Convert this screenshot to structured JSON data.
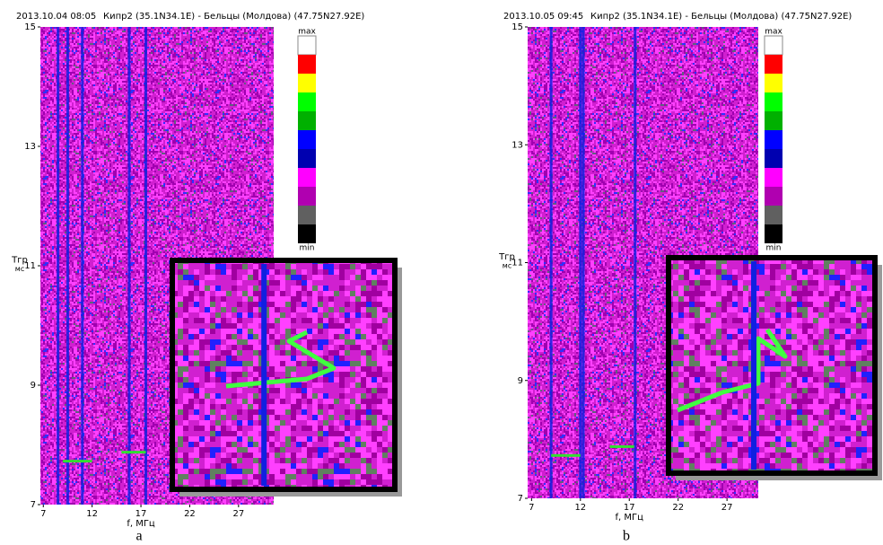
{
  "chart_data": [
    {
      "type": "heatmap",
      "date": "2013.10.04   08:05",
      "title": "Кипр2 (35.1N34.1E)  -  Бельцы (Молдова) (47.75N27.92E)",
      "x_label": "f, МГц",
      "y_label": "Tгр",
      "y_unit": "мс",
      "panel_label": "a",
      "xlim": [
        6.7,
        30.6
      ],
      "xticks": [
        7,
        12,
        17,
        22,
        27
      ],
      "ylim": [
        7,
        15
      ],
      "yticks": [
        7,
        9,
        11,
        13,
        15
      ],
      "colorbar": {
        "top_label": "max",
        "bottom_label": "min",
        "colors": [
          "#ffffff",
          "#ff0000",
          "#ffff00",
          "#00ff00",
          "#00b000",
          "#0000ff",
          "#0000b0",
          "#ff00ff",
          "#b000b0",
          "#606060",
          "#000000"
        ]
      }
    },
    {
      "type": "heatmap",
      "date": "2013.10.05   09:45",
      "title": "Кипр2 (35.1N34.1E)  -  Бельцы (Молдова) (47.75N27.92E)",
      "x_label": "f, МГц",
      "y_label": "Tгр",
      "y_unit": "мс",
      "panel_label": "b",
      "xlim": [
        6.6,
        30.2
      ],
      "xticks": [
        7,
        12,
        17,
        22,
        27
      ],
      "ylim": [
        7,
        15
      ],
      "yticks": [
        7,
        9,
        11,
        13,
        15
      ],
      "colorbar": {
        "top_label": "max",
        "bottom_label": "min",
        "colors": [
          "#ffffff",
          "#ff0000",
          "#ffff00",
          "#00ff00",
          "#00b000",
          "#0000ff",
          "#0000b0",
          "#ff00ff",
          "#b000b0",
          "#606060",
          "#000000"
        ]
      }
    }
  ]
}
